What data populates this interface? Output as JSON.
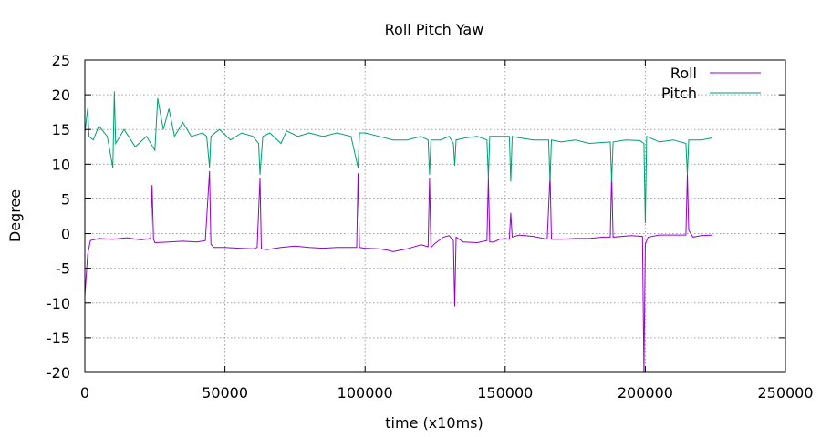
{
  "chart_data": {
    "type": "line",
    "title": "Roll Pitch Yaw",
    "xlabel": "time (x10ms)",
    "ylabel": "Degree",
    "xlim": [
      0,
      250000
    ],
    "ylim": [
      -20,
      25
    ],
    "x_ticks": [
      0,
      50000,
      100000,
      150000,
      200000,
      250000
    ],
    "y_ticks": [
      -20,
      -15,
      -10,
      -5,
      0,
      5,
      10,
      15,
      20,
      25
    ],
    "grid": true,
    "legend_position": "top-right",
    "series": [
      {
        "name": "Roll",
        "color": "#9400d3",
        "points": [
          [
            0,
            -9
          ],
          [
            1000,
            -3
          ],
          [
            2000,
            -1
          ],
          [
            5000,
            -0.7
          ],
          [
            10000,
            -0.8
          ],
          [
            15000,
            -0.6
          ],
          [
            20000,
            -0.9
          ],
          [
            23500,
            -0.7
          ],
          [
            24000,
            7
          ],
          [
            24500,
            -0.8
          ],
          [
            25000,
            -1.3
          ],
          [
            30000,
            -1.2
          ],
          [
            35000,
            -1.1
          ],
          [
            40000,
            -1.2
          ],
          [
            43000,
            -1.0
          ],
          [
            44500,
            9
          ],
          [
            45000,
            -1.5
          ],
          [
            46000,
            -2.0
          ],
          [
            50000,
            -2.0
          ],
          [
            55000,
            -2.1
          ],
          [
            60000,
            -2.2
          ],
          [
            61500,
            -2.0
          ],
          [
            62500,
            8
          ],
          [
            63000,
            -2.2
          ],
          [
            65000,
            -2.3
          ],
          [
            70000,
            -2.0
          ],
          [
            75000,
            -1.8
          ],
          [
            80000,
            -2.0
          ],
          [
            85000,
            -2.1
          ],
          [
            90000,
            -2.0
          ],
          [
            97000,
            -2.0
          ],
          [
            97500,
            8.7
          ],
          [
            98000,
            -2.0
          ],
          [
            100000,
            -2.1
          ],
          [
            105000,
            -2.2
          ],
          [
            108000,
            -2.4
          ],
          [
            110000,
            -2.6
          ],
          [
            115000,
            -2.2
          ],
          [
            120000,
            -1.6
          ],
          [
            122500,
            -1.9
          ],
          [
            123000,
            8
          ],
          [
            123500,
            -2.0
          ],
          [
            125000,
            -1.4
          ],
          [
            128000,
            -0.5
          ],
          [
            130000,
            -0.3
          ],
          [
            131500,
            -1.0
          ],
          [
            132000,
            -10.5
          ],
          [
            132500,
            -0.5
          ],
          [
            135000,
            -1.2
          ],
          [
            140000,
            -1.3
          ],
          [
            143500,
            -1.0
          ],
          [
            144000,
            8
          ],
          [
            144500,
            -1.2
          ],
          [
            146000,
            -1.2
          ],
          [
            148000,
            -0.8
          ],
          [
            150000,
            -0.7
          ],
          [
            151500,
            -0.8
          ],
          [
            152000,
            3
          ],
          [
            152500,
            -0.5
          ],
          [
            155000,
            -0.2
          ],
          [
            160000,
            -0.4
          ],
          [
            165000,
            -0.8
          ],
          [
            166000,
            8.5
          ],
          [
            166500,
            -0.8
          ],
          [
            170000,
            -0.8
          ],
          [
            175000,
            -0.7
          ],
          [
            180000,
            -0.7
          ],
          [
            185000,
            -0.5
          ],
          [
            187500,
            -0.5
          ],
          [
            188000,
            8.5
          ],
          [
            188500,
            -0.5
          ],
          [
            195000,
            -0.3
          ],
          [
            199000,
            -0.4
          ],
          [
            199500,
            -20
          ],
          [
            200000,
            -1.5
          ],
          [
            201000,
            -0.5
          ],
          [
            205000,
            -0.2
          ],
          [
            210000,
            -0.2
          ],
          [
            214500,
            -0.2
          ],
          [
            215000,
            8.6
          ],
          [
            215500,
            0.5
          ],
          [
            217000,
            -0.5
          ],
          [
            220000,
            -0.3
          ],
          [
            224000,
            -0.2
          ]
        ]
      },
      {
        "name": "Pitch",
        "color": "#009e73",
        "points": [
          [
            0,
            14.5
          ],
          [
            1000,
            18
          ],
          [
            1500,
            14
          ],
          [
            3000,
            13.5
          ],
          [
            5000,
            15.5
          ],
          [
            8000,
            14
          ],
          [
            10000,
            9.5
          ],
          [
            10500,
            20.5
          ],
          [
            11000,
            13
          ],
          [
            14000,
            15
          ],
          [
            18000,
            12.5
          ],
          [
            22000,
            14
          ],
          [
            25000,
            12
          ],
          [
            26000,
            19.5
          ],
          [
            28000,
            15
          ],
          [
            30000,
            18
          ],
          [
            32000,
            14
          ],
          [
            35000,
            16
          ],
          [
            38000,
            14
          ],
          [
            42000,
            14.5
          ],
          [
            43500,
            14
          ],
          [
            44500,
            9.5
          ],
          [
            45000,
            14
          ],
          [
            48000,
            15
          ],
          [
            52000,
            13.5
          ],
          [
            56000,
            14.5
          ],
          [
            60000,
            14
          ],
          [
            62000,
            13
          ],
          [
            62500,
            8.5
          ],
          [
            63500,
            14
          ],
          [
            66000,
            14.5
          ],
          [
            70000,
            13
          ],
          [
            72000,
            14.8
          ],
          [
            76000,
            14
          ],
          [
            80000,
            14.5
          ],
          [
            85000,
            14
          ],
          [
            90000,
            14.5
          ],
          [
            95000,
            14
          ],
          [
            97500,
            9.5
          ],
          [
            98000,
            14.5
          ],
          [
            100000,
            14.5
          ],
          [
            105000,
            14
          ],
          [
            110000,
            13.5
          ],
          [
            115000,
            13.5
          ],
          [
            120000,
            14
          ],
          [
            122500,
            13.5
          ],
          [
            123000,
            8.5
          ],
          [
            123500,
            13.5
          ],
          [
            127000,
            13.5
          ],
          [
            130000,
            14
          ],
          [
            131500,
            13
          ],
          [
            132000,
            9.8
          ],
          [
            132500,
            13.5
          ],
          [
            136000,
            13.8
          ],
          [
            140000,
            14
          ],
          [
            143500,
            13.5
          ],
          [
            144000,
            8
          ],
          [
            144500,
            14
          ],
          [
            148000,
            14
          ],
          [
            151500,
            14
          ],
          [
            152000,
            7.5
          ],
          [
            152500,
            14
          ],
          [
            155000,
            13.8
          ],
          [
            160000,
            13.5
          ],
          [
            165500,
            13.5
          ],
          [
            166000,
            7.5
          ],
          [
            166500,
            13.5
          ],
          [
            170000,
            13.2
          ],
          [
            175000,
            13.5
          ],
          [
            180000,
            13
          ],
          [
            187500,
            13.2
          ],
          [
            188000,
            7.5
          ],
          [
            188500,
            13.2
          ],
          [
            193000,
            13.5
          ],
          [
            198000,
            13.4
          ],
          [
            199500,
            13
          ],
          [
            200000,
            1.5
          ],
          [
            200500,
            14
          ],
          [
            205000,
            13.2
          ],
          [
            210000,
            13.5
          ],
          [
            214500,
            13
          ],
          [
            215000,
            8.5
          ],
          [
            215500,
            13.5
          ],
          [
            220000,
            13.5
          ],
          [
            224000,
            13.8
          ]
        ]
      }
    ]
  }
}
